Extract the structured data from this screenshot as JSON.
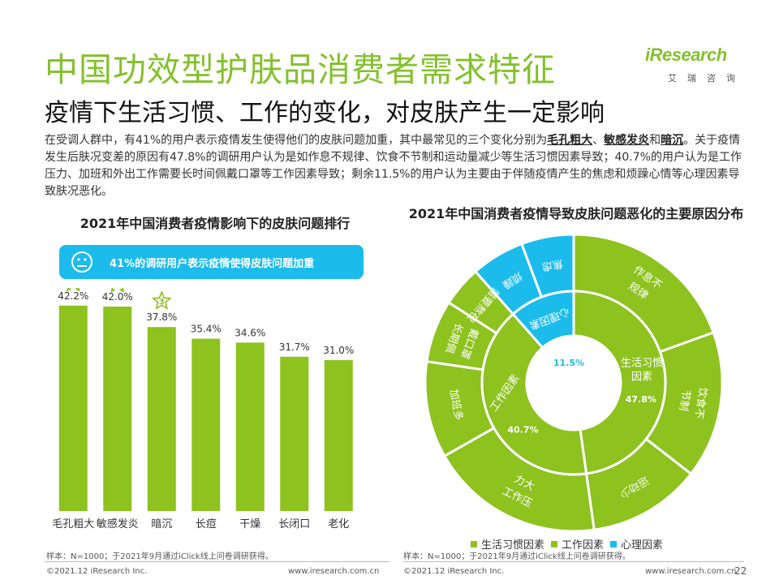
{
  "header": {
    "title": "中国功效型护肤品消费者需求特征",
    "subtitle": "疫情下生活习惯、工作的变化，对皮肤产生一定影响"
  },
  "logo": {
    "word": "iResearch",
    "cn": "艾瑞咨询"
  },
  "intro": {
    "p1": "在受调人群中，有41%的用户表示疫情发生使得他们的皮肤问题加重，其中最常见的三个变化分别为",
    "h1": "毛孔粗大",
    "sep1": "、",
    "h2": "敏感发炎",
    "p2": "和",
    "h3": "暗沉",
    "p3": "。关于疫情发生后肤况变差的原因有47.8%的调研用户认为是如作息不规律、饮食不节制和运动量减少等生活习惯因素导致；40.7%的用户认为是工作压力、加班和外出工作需要长时间佩戴口罩等工作因素导致；剩余11.5%的用户认为主要由于伴随疫情产生的焦虑和烦躁心情等心理因素导致肤况恶化。"
  },
  "left_chart_title": "2021年中国消费者疫情影响下的皮肤问题排行",
  "callout": {
    "text": "41%的调研用户表示疫情使得皮肤问题加重"
  },
  "right_chart_title": "2021年中国消费者疫情导致皮肤问题恶化的主要原因分布",
  "colors": {
    "green": "#8dc21f",
    "blue": "#1bbbeb",
    "gray_text": "#555555"
  },
  "chart_data": [
    {
      "type": "bar",
      "title": "2021年中国消费者疫情影响下的皮肤问题排行",
      "categories": [
        "毛孔粗大",
        "敏感发炎",
        "暗沉",
        "长痘",
        "干燥",
        "长闭口",
        "老化"
      ],
      "values": [
        42.2,
        42.0,
        37.8,
        35.4,
        34.6,
        31.7,
        31.0
      ],
      "value_labels": [
        "42.2%",
        "42.0%",
        "37.8%",
        "35.4%",
        "34.6%",
        "31.7%",
        "31.0%"
      ],
      "rank_badges": [
        "1",
        "2",
        "3"
      ],
      "ylim": [
        0,
        50
      ],
      "grid": false
    },
    {
      "type": "pie",
      "title": "2021年中国消费者疫情导致皮肤问题恶化的主要原因分布",
      "inner": [
        {
          "label": "生活习惯因素",
          "value": 47.8,
          "value_label": "47.8%",
          "color": "#8dc21f"
        },
        {
          "label": "工作因素",
          "value": 40.7,
          "value_label": "40.7%",
          "color": "#8dc21f"
        },
        {
          "label": "心理因素",
          "value": 11.5,
          "value_label": "11.5%",
          "color": "#1bbbeb"
        }
      ],
      "outer": [
        {
          "label": "作息不规律",
          "group": "生活习惯因素",
          "value": 19.5
        },
        {
          "label": "饮食不节制",
          "group": "生活习惯因素",
          "value": 16.0
        },
        {
          "label": "运动少",
          "group": "生活习惯因素",
          "value": 12.3
        },
        {
          "label": "工作压力大",
          "group": "工作因素",
          "value": 19.0
        },
        {
          "label": "加班多",
          "group": "工作因素",
          "value": 10.5
        },
        {
          "label": "长期佩戴口罩",
          "group": "工作因素",
          "value": 6.8
        },
        {
          "label": "需要熬夜",
          "group": "工作因素",
          "value": 4.4
        },
        {
          "label": "烦躁",
          "group": "心理因素",
          "value": 5.8
        },
        {
          "label": "焦虑",
          "group": "心理因素",
          "value": 5.7
        }
      ],
      "legend": [
        {
          "label": "生活习惯因素",
          "color": "#8dc21f"
        },
        {
          "label": "工作因素",
          "color": "#8dc21f"
        },
        {
          "label": "心理因素",
          "color": "#1bbbeb"
        }
      ],
      "legend_position": "bottom"
    }
  ],
  "footer": {
    "note_left": "样本：N=1000；于2021年9月通过iClick线上问卷调研获得。",
    "note_right": "样本：N=1000；于2021年9月通过iClick线上问卷调研获得。",
    "copyright_left": "©2021.12 iResearch Inc.",
    "url_left": "www.iresearch.com.cn",
    "copyright_right": "©2021.12 iResearch Inc.",
    "url_right": "www.iresearch.com.cn",
    "page": "22"
  }
}
